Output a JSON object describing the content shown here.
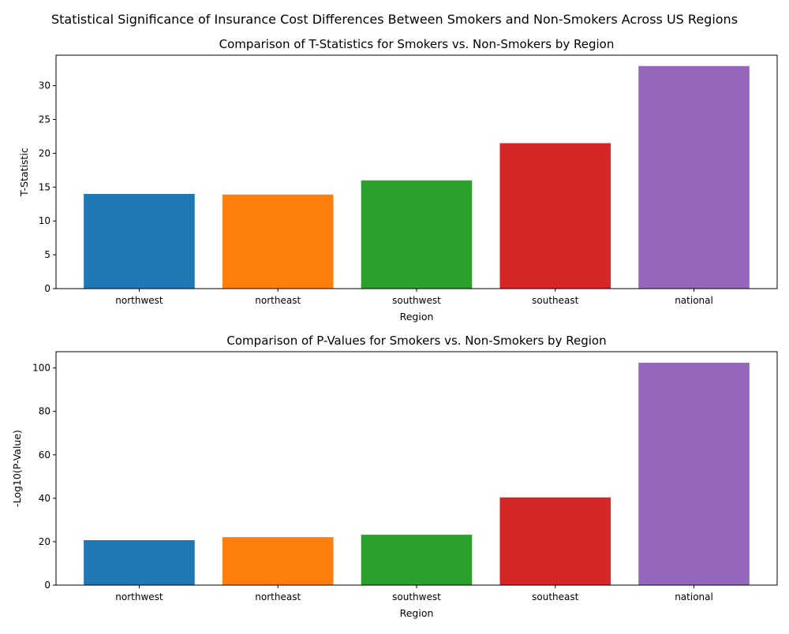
{
  "figure": {
    "suptitle": "Statistical Significance of Insurance Cost Differences Between Smokers and Non-Smokers Across US Regions"
  },
  "chart_data": [
    {
      "type": "bar",
      "title": "Comparison of T-Statistics for Smokers vs. Non-Smokers by Region",
      "xlabel": "Region",
      "ylabel": "T-Statistic",
      "categories": [
        "northwest",
        "northeast",
        "southwest",
        "southeast",
        "national"
      ],
      "values": [
        14.0,
        13.9,
        16.0,
        21.5,
        32.9
      ],
      "colors": [
        "#1f77b4",
        "#ff7f0e",
        "#2ca02c",
        "#d62728",
        "#9467bd"
      ],
      "ylim": [
        0,
        34.5
      ],
      "yticks": [
        0,
        5,
        10,
        15,
        20,
        25,
        30
      ],
      "grid": false,
      "legend": "none"
    },
    {
      "type": "bar",
      "title": "Comparison of P-Values for Smokers vs. Non-Smokers by Region",
      "xlabel": "Region",
      "ylabel": "-Log10(P-Value)",
      "categories": [
        "northwest",
        "northeast",
        "southwest",
        "southeast",
        "national"
      ],
      "values": [
        20.7,
        22.1,
        23.2,
        40.4,
        102.4
      ],
      "colors": [
        "#1f77b4",
        "#ff7f0e",
        "#2ca02c",
        "#d62728",
        "#9467bd"
      ],
      "ylim": [
        0,
        107.5
      ],
      "yticks": [
        0,
        20,
        40,
        60,
        80,
        100
      ],
      "grid": false,
      "legend": "none"
    }
  ]
}
